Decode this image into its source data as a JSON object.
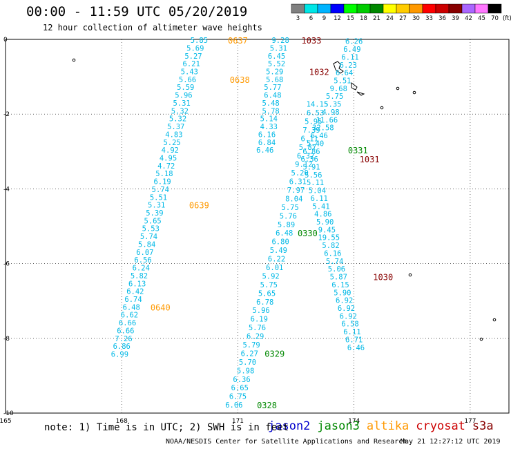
{
  "title": "00:00 - 11:59 UTC 05/20/2019",
  "subtitle": "12 hour collection of altimeter wave heights",
  "footer_note": "note: 1) Time is in UTC; 2) SWH is in feet",
  "credit": "NOAA/NESDIS Center for Satellite Applications and Research",
  "timestamp": "May 21 12:27:12 UTC 2019",
  "satellites": [
    {
      "name": "jason2",
      "color": "#0000cc"
    },
    {
      "name": "jason3",
      "color": "#008800"
    },
    {
      "name": "altika",
      "color": "#ff9900"
    },
    {
      "name": "cryosat",
      "color": "#cc0000"
    },
    {
      "name": "s3a",
      "color": "#880000"
    }
  ],
  "colorbar": {
    "unit": "(ft)",
    "labels": [
      "3",
      "6",
      "9",
      "12",
      "15",
      "18",
      "21",
      "24",
      "27",
      "30",
      "33",
      "36",
      "39",
      "42",
      "45",
      "70"
    ],
    "colors": [
      "#808080",
      "#00e6e6",
      "#00b4ff",
      "#0000ff",
      "#00ff00",
      "#00cc00",
      "#008800",
      "#ffff00",
      "#ffcc00",
      "#ff9900",
      "#ff0000",
      "#cc0000",
      "#880000",
      "#aa66ff",
      "#ff77ff",
      "#000000"
    ]
  },
  "chart_data": {
    "type": "scatter",
    "title": "00:00 - 11:59 UTC 05/20/2019",
    "xlabel": "",
    "ylabel": "",
    "xlim": [
      165,
      178
    ],
    "ylim": [
      -10,
      0
    ],
    "x_ticks": [
      "165",
      "168",
      "171",
      "174",
      "177"
    ],
    "y_ticks": [
      "0",
      "-2",
      "-4",
      "-6",
      "-8",
      "-10"
    ],
    "grid": true,
    "series": [
      {
        "track": "0637-0640",
        "color": "#00b8e6",
        "points": [
          {
            "x": 170.0,
            "y": -0.02,
            "v": "5.85"
          },
          {
            "x": 169.9,
            "y": -0.23,
            "v": "5.69"
          },
          {
            "x": 169.85,
            "y": -0.44,
            "v": "5.27"
          },
          {
            "x": 169.8,
            "y": -0.65,
            "v": "6.21"
          },
          {
            "x": 169.75,
            "y": -0.86,
            "v": "5.43"
          },
          {
            "x": 169.7,
            "y": -1.07,
            "v": "5.66"
          },
          {
            "x": 169.65,
            "y": -1.28,
            "v": "5.59"
          },
          {
            "x": 169.6,
            "y": -1.49,
            "v": "5.96"
          },
          {
            "x": 169.55,
            "y": -1.7,
            "v": "5.31"
          },
          {
            "x": 169.5,
            "y": -1.91,
            "v": "5.32"
          },
          {
            "x": 169.45,
            "y": -2.12,
            "v": "5.32"
          },
          {
            "x": 169.4,
            "y": -2.33,
            "v": "5.37"
          },
          {
            "x": 169.35,
            "y": -2.54,
            "v": "4.83"
          },
          {
            "x": 169.3,
            "y": -2.75,
            "v": "5.25"
          },
          {
            "x": 169.25,
            "y": -2.96,
            "v": "4.92"
          },
          {
            "x": 169.2,
            "y": -3.17,
            "v": "4.95"
          },
          {
            "x": 169.15,
            "y": -3.38,
            "v": "4.72"
          },
          {
            "x": 169.1,
            "y": -3.59,
            "v": "5.18"
          },
          {
            "x": 169.05,
            "y": -3.8,
            "v": "6.19"
          },
          {
            "x": 169.0,
            "y": -4.01,
            "v": "5.74"
          },
          {
            "x": 168.95,
            "y": -4.22,
            "v": "5.51"
          },
          {
            "x": 168.9,
            "y": -4.43,
            "v": "5.31"
          },
          {
            "x": 168.85,
            "y": -4.64,
            "v": "5.39"
          },
          {
            "x": 168.8,
            "y": -4.85,
            "v": "5.65"
          },
          {
            "x": 168.75,
            "y": -5.06,
            "v": "5.53"
          },
          {
            "x": 168.7,
            "y": -5.27,
            "v": "5.74"
          },
          {
            "x": 168.65,
            "y": -5.48,
            "v": "5.84"
          },
          {
            "x": 168.6,
            "y": -5.69,
            "v": "6.07"
          },
          {
            "x": 168.55,
            "y": -5.9,
            "v": "6.56"
          },
          {
            "x": 168.5,
            "y": -6.11,
            "v": "6.24"
          },
          {
            "x": 168.45,
            "y": -6.32,
            "v": "5.82"
          },
          {
            "x": 168.4,
            "y": -6.53,
            "v": "6.13"
          },
          {
            "x": 168.35,
            "y": -6.74,
            "v": "6.42"
          },
          {
            "x": 168.3,
            "y": -6.95,
            "v": "6.74"
          },
          {
            "x": 168.25,
            "y": -7.16,
            "v": "6.48"
          },
          {
            "x": 168.2,
            "y": -7.37,
            "v": "6.62"
          },
          {
            "x": 168.15,
            "y": -7.58,
            "v": "6.66"
          },
          {
            "x": 168.1,
            "y": -7.79,
            "v": "6.66"
          },
          {
            "x": 168.05,
            "y": -8.0,
            "v": "7.26"
          },
          {
            "x": 168.0,
            "y": -8.21,
            "v": "6.86"
          },
          {
            "x": 167.95,
            "y": -8.42,
            "v": "6.99"
          }
        ]
      },
      {
        "track": "0328-0331",
        "color": "#00b8e6",
        "points": [
          {
            "x": 170.9,
            "y": -9.78,
            "v": "6.06"
          },
          {
            "x": 171.0,
            "y": -9.55,
            "v": "6.75"
          },
          {
            "x": 171.05,
            "y": -9.32,
            "v": "6.65"
          },
          {
            "x": 171.1,
            "y": -9.09,
            "v": "6.36"
          },
          {
            "x": 171.2,
            "y": -8.86,
            "v": "5.98"
          },
          {
            "x": 171.25,
            "y": -8.63,
            "v": "5.70"
          },
          {
            "x": 171.3,
            "y": -8.4,
            "v": "6.27"
          },
          {
            "x": 171.35,
            "y": -8.17,
            "v": "5.79"
          },
          {
            "x": 171.45,
            "y": -7.94,
            "v": "6.29"
          },
          {
            "x": 171.5,
            "y": -7.71,
            "v": "5.76"
          },
          {
            "x": 171.55,
            "y": -7.48,
            "v": "6.19"
          },
          {
            "x": 171.6,
            "y": -7.25,
            "v": "5.96"
          },
          {
            "x": 171.7,
            "y": -7.02,
            "v": "6.78"
          },
          {
            "x": 171.75,
            "y": -6.79,
            "v": "5.65"
          },
          {
            "x": 171.8,
            "y": -6.56,
            "v": "5.75"
          },
          {
            "x": 171.85,
            "y": -6.33,
            "v": "5.92"
          },
          {
            "x": 171.95,
            "y": -6.1,
            "v": "6.01"
          },
          {
            "x": 172.0,
            "y": -5.87,
            "v": "6.22"
          },
          {
            "x": 172.05,
            "y": -5.64,
            "v": "5.49"
          },
          {
            "x": 172.1,
            "y": -5.41,
            "v": "6.80"
          },
          {
            "x": 172.2,
            "y": -5.18,
            "v": "6.48"
          },
          {
            "x": 172.25,
            "y": -4.95,
            "v": "5.89"
          },
          {
            "x": 172.3,
            "y": -4.72,
            "v": "5.76"
          },
          {
            "x": 172.35,
            "y": -4.49,
            "v": "5.75"
          },
          {
            "x": 172.45,
            "y": -4.26,
            "v": "8.04"
          },
          {
            "x": 172.5,
            "y": -4.03,
            "v": "7.97"
          },
          {
            "x": 172.55,
            "y": -3.8,
            "v": "6.31"
          },
          {
            "x": 172.6,
            "y": -3.57,
            "v": "5.20"
          },
          {
            "x": 172.7,
            "y": -3.34,
            "v": "9.12"
          },
          {
            "x": 172.75,
            "y": -3.11,
            "v": "6.32"
          },
          {
            "x": 172.8,
            "y": -2.88,
            "v": "5.87"
          },
          {
            "x": 172.85,
            "y": -2.65,
            "v": "6.11"
          },
          {
            "x": 172.9,
            "y": -2.42,
            "v": "7.39"
          },
          {
            "x": 172.95,
            "y": -2.19,
            "v": "5.95"
          },
          {
            "x": 173.0,
            "y": -1.96,
            "v": "6.53"
          },
          {
            "x": 173.05,
            "y": -1.73,
            "v": "14.15"
          }
        ]
      },
      {
        "track": "1030-1033",
        "color": "#00b8e6",
        "points": [
          {
            "x": 172.1,
            "y": -0.02,
            "v": "9.28"
          },
          {
            "x": 172.05,
            "y": -0.23,
            "v": "5.31"
          },
          {
            "x": 172.0,
            "y": -0.44,
            "v": "6.45"
          },
          {
            "x": 172.0,
            "y": -0.65,
            "v": "5.52"
          },
          {
            "x": 171.95,
            "y": -0.86,
            "v": "5.29"
          },
          {
            "x": 171.95,
            "y": -1.07,
            "v": "5.68"
          },
          {
            "x": 171.9,
            "y": -1.28,
            "v": "5.77"
          },
          {
            "x": 171.9,
            "y": -1.49,
            "v": "6.48"
          },
          {
            "x": 171.85,
            "y": -1.7,
            "v": "5.48"
          },
          {
            "x": 171.85,
            "y": -1.91,
            "v": "5.78"
          },
          {
            "x": 171.8,
            "y": -2.12,
            "v": "5.14"
          },
          {
            "x": 171.8,
            "y": -2.33,
            "v": "4.33"
          },
          {
            "x": 171.75,
            "y": -2.54,
            "v": "6.16"
          },
          {
            "x": 171.75,
            "y": -2.75,
            "v": "6.84"
          },
          {
            "x": 171.7,
            "y": -2.96,
            "v": "6.46"
          }
        ]
      },
      {
        "track": "1030-1033 east",
        "color": "#00b8e6",
        "points": [
          {
            "x": 174.0,
            "y": -0.05,
            "v": "6.26"
          },
          {
            "x": 173.95,
            "y": -0.26,
            "v": "6.49"
          },
          {
            "x": 173.9,
            "y": -0.47,
            "v": "6.11"
          },
          {
            "x": 173.85,
            "y": -0.68,
            "v": "6.23"
          },
          {
            "x": 173.75,
            "y": -0.89,
            "v": "6.64"
          },
          {
            "x": 173.7,
            "y": -1.1,
            "v": "5.51"
          },
          {
            "x": 173.6,
            "y": -1.31,
            "v": "9.68"
          },
          {
            "x": 173.5,
            "y": -1.52,
            "v": "5.75"
          },
          {
            "x": 173.45,
            "y": -1.73,
            "v": "5.35"
          },
          {
            "x": 173.4,
            "y": -1.94,
            "v": "4.98"
          },
          {
            "x": 173.3,
            "y": -2.15,
            "v": "11.66"
          },
          {
            "x": 173.2,
            "y": -2.36,
            "v": "32.58"
          },
          {
            "x": 173.1,
            "y": -2.57,
            "v": "6.46"
          },
          {
            "x": 173.0,
            "y": -2.78,
            "v": "5.40"
          },
          {
            "x": 172.9,
            "y": -2.99,
            "v": "6.86"
          },
          {
            "x": 172.85,
            "y": -3.2,
            "v": "6.36"
          },
          {
            "x": 172.9,
            "y": -3.41,
            "v": "5.91"
          },
          {
            "x": 172.95,
            "y": -3.62,
            "v": "5.56"
          },
          {
            "x": 173.0,
            "y": -3.83,
            "v": "5.11"
          },
          {
            "x": 173.05,
            "y": -4.04,
            "v": "5.04"
          },
          {
            "x": 173.1,
            "y": -4.25,
            "v": "6.11"
          },
          {
            "x": 173.15,
            "y": -4.46,
            "v": "5.41"
          },
          {
            "x": 173.2,
            "y": -4.67,
            "v": "4.86"
          },
          {
            "x": 173.25,
            "y": -4.88,
            "v": "5.90"
          },
          {
            "x": 173.3,
            "y": -5.09,
            "v": "9.45"
          },
          {
            "x": 173.35,
            "y": -5.3,
            "v": "19.55"
          },
          {
            "x": 173.4,
            "y": -5.51,
            "v": "5.82"
          },
          {
            "x": 173.45,
            "y": -5.72,
            "v": "6.16"
          },
          {
            "x": 173.5,
            "y": -5.93,
            "v": "5.74"
          },
          {
            "x": 173.55,
            "y": -6.14,
            "v": "5.06"
          },
          {
            "x": 173.6,
            "y": -6.35,
            "v": "5.87"
          },
          {
            "x": 173.65,
            "y": -6.56,
            "v": "6.15"
          },
          {
            "x": 173.7,
            "y": -6.77,
            "v": "5.90"
          },
          {
            "x": 173.75,
            "y": -6.98,
            "v": "6.92"
          },
          {
            "x": 173.8,
            "y": -7.19,
            "v": "6.92"
          },
          {
            "x": 173.85,
            "y": -7.4,
            "v": "6.92"
          },
          {
            "x": 173.9,
            "y": -7.61,
            "v": "6.58"
          },
          {
            "x": 173.95,
            "y": -7.82,
            "v": "6.11"
          },
          {
            "x": 174.0,
            "y": -8.03,
            "v": "6.71"
          },
          {
            "x": 174.05,
            "y": -8.24,
            "v": "6.46"
          }
        ]
      }
    ],
    "time_labels": [
      {
        "x": 171.0,
        "y": -0.02,
        "text": "0637",
        "color": "#ff9900"
      },
      {
        "x": 171.05,
        "y": -1.07,
        "text": "0638",
        "color": "#ff9900"
      },
      {
        "x": 170.0,
        "y": -4.43,
        "text": "0639",
        "color": "#ff9900"
      },
      {
        "x": 169.0,
        "y": -7.16,
        "text": "0640",
        "color": "#ff9900"
      },
      {
        "x": 172.9,
        "y": -0.02,
        "text": "1033",
        "color": "#880000"
      },
      {
        "x": 173.1,
        "y": -0.86,
        "text": "1032",
        "color": "#880000"
      },
      {
        "x": 174.4,
        "y": -3.2,
        "text": "1031",
        "color": "#880000"
      },
      {
        "x": 174.75,
        "y": -6.35,
        "text": "1030",
        "color": "#880000"
      },
      {
        "x": 174.1,
        "y": -2.96,
        "text": "0331",
        "color": "#008800"
      },
      {
        "x": 172.8,
        "y": -5.18,
        "text": "0330",
        "color": "#008800"
      },
      {
        "x": 171.95,
        "y": -8.4,
        "text": "0329",
        "color": "#008800"
      },
      {
        "x": 171.75,
        "y": -9.78,
        "text": "0328",
        "color": "#008800"
      }
    ]
  }
}
